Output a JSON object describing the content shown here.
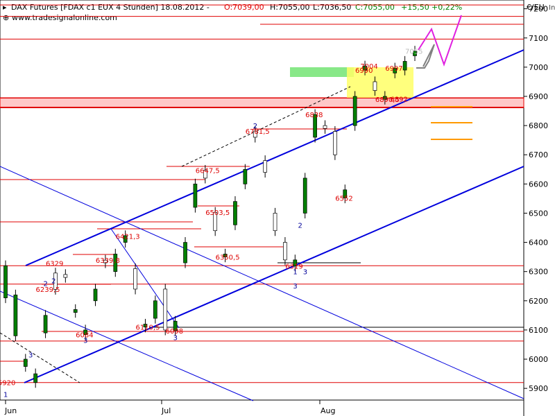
{
  "header": {
    "title": "DAX Futures [FDAX c1 EUX  4 Stunden] 18.08.2012 -",
    "open": "O:7039,00",
    "high": "H:7055,00",
    "low": "L:7036,50",
    "close": "C:7055,00",
    "change": "+15,50",
    "change_pct": "+0,22%",
    "website": "www.tradesignalonline.com",
    "unit": "€/EU",
    "corner": "In"
  },
  "colors": {
    "candle": "#008000",
    "resistance": "#e00000",
    "channel": "#0000dd",
    "projection": "#e020e0",
    "projection_gray": "#808080",
    "target_box": "#ffff66",
    "green_box": "#88e888",
    "band": "#ffc8c8",
    "orange": "#ff9900",
    "label_red": "#dd0000",
    "label_blue": "#000099"
  },
  "chart_data": {
    "type": "candlestick",
    "ylim": [
      5860,
      7230
    ],
    "yticks": [
      5900,
      6000,
      6100,
      6200,
      6300,
      6400,
      6500,
      6600,
      6700,
      6800,
      6900,
      7000,
      7100,
      7200
    ],
    "x_months": [
      "Jun",
      "Jul",
      "Aug"
    ],
    "price_points": [
      [
        6210,
        6320
      ],
      [
        6080,
        6220
      ],
      [
        5975,
        6000
      ],
      [
        5920,
        5950
      ],
      [
        6090,
        6150
      ],
      [
        6295,
        6239
      ],
      [
        6290,
        6280
      ],
      [
        6160,
        6170
      ],
      [
        6084,
        6100
      ],
      [
        6200,
        6240
      ],
      [
        6339,
        6330
      ],
      [
        6300,
        6360
      ],
      [
        6400,
        6423
      ],
      [
        6310,
        6240
      ],
      [
        6110,
        6120
      ],
      [
        6140,
        6200
      ],
      [
        6240,
        6100
      ],
      [
        6098,
        6130
      ],
      [
        6330,
        6400
      ],
      [
        6520,
        6600
      ],
      [
        6647,
        6620
      ],
      [
        6503,
        6440
      ],
      [
        6350,
        6360
      ],
      [
        6460,
        6540
      ],
      [
        6600,
        6650
      ],
      [
        6781,
        6760
      ],
      [
        6680,
        6640
      ],
      [
        6500,
        6440
      ],
      [
        6400,
        6340
      ],
      [
        6319,
        6340
      ],
      [
        6500,
        6620
      ],
      [
        6760,
        6838
      ],
      [
        6800,
        6790
      ],
      [
        6780,
        6700
      ],
      [
        6552,
        6580
      ],
      [
        6800,
        6900
      ],
      [
        6990,
        7004
      ],
      [
        6950,
        6920
      ],
      [
        6890,
        6900
      ],
      [
        6980,
        6997
      ],
      [
        6990,
        7020
      ],
      [
        7039,
        7055
      ]
    ],
    "horizontal_levels": [
      7213,
      7174,
      7096,
      6894,
      6862,
      6320,
      6257,
      6062,
      5920
    ],
    "price_labels": [
      {
        "text": "5920",
        "x": 0.2,
        "y": 5920
      },
      {
        "text": "6084",
        "x": 8.0,
        "y": 6084
      },
      {
        "text": "6239,5",
        "x": 4.0,
        "y": 6239.5
      },
      {
        "text": "6329",
        "x": 5.0,
        "y": 6329
      },
      {
        "text": "6339,8",
        "x": 10.0,
        "y": 6339.8
      },
      {
        "text": "6421,3",
        "x": 12.0,
        "y": 6421.3
      },
      {
        "text": "6110,5",
        "x": 14.0,
        "y": 6110.5
      },
      {
        "text": "6098",
        "x": 17.0,
        "y": 6098
      },
      {
        "text": "6647,5",
        "x": 20.0,
        "y": 6647.5
      },
      {
        "text": "6503,5",
        "x": 21.0,
        "y": 6503.5
      },
      {
        "text": "6350,5",
        "x": 22.0,
        "y": 6350.5
      },
      {
        "text": "6781,5",
        "x": 25.0,
        "y": 6781.5
      },
      {
        "text": "6319",
        "x": 29.0,
        "y": 6319
      },
      {
        "text": "6838",
        "x": 31.0,
        "y": 6838
      },
      {
        "text": "6552",
        "x": 34.0,
        "y": 6552
      },
      {
        "text": "6990",
        "x": 36.0,
        "y": 6990
      },
      {
        "text": "7004",
        "x": 36.5,
        "y": 7004
      },
      {
        "text": "6890,5",
        "x": 38.0,
        "y": 6890.5
      },
      {
        "text": "6997",
        "x": 39.0,
        "y": 6997
      },
      {
        "text": "6892",
        "x": 39.5,
        "y": 6892
      },
      {
        "text": "7055",
        "x": 41.0,
        "y": 7055
      }
    ],
    "wave_labels": [
      {
        "text": "1",
        "x": 0.0,
        "y": 5880
      },
      {
        "text": "2",
        "x": 4.8,
        "y": 6270
      },
      {
        "text": "2",
        "x": 4.0,
        "y": 6260
      },
      {
        "text": "3",
        "x": 2.5,
        "y": 6015
      },
      {
        "text": "3",
        "x": 8.0,
        "y": 6065
      },
      {
        "text": "3",
        "x": 17.0,
        "y": 6075
      },
      {
        "text": "2",
        "x": 25.0,
        "y": 6800
      },
      {
        "text": "2",
        "x": 29.5,
        "y": 6460
      },
      {
        "text": "1",
        "x": 29.0,
        "y": 6300
      },
      {
        "text": "3",
        "x": 30.0,
        "y": 6300
      },
      {
        "text": "3",
        "x": 29.0,
        "y": 6252
      }
    ]
  }
}
